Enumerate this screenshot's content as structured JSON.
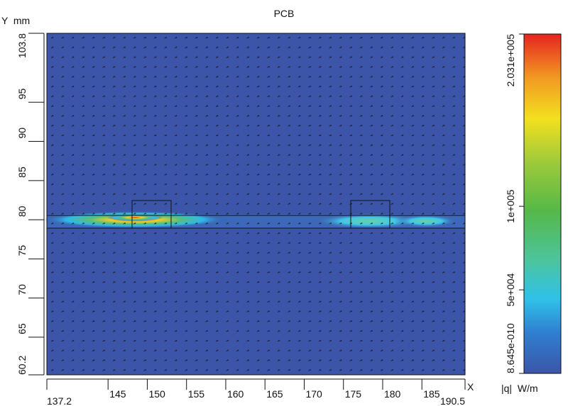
{
  "chart_data": {
    "type": "heatmap",
    "title": "PCB",
    "y_label": "Y  mm",
    "x_label": "X",
    "xlim": [
      137.2,
      190.5
    ],
    "xticks": [
      137.2,
      145,
      150,
      155,
      160,
      165,
      170,
      175,
      180,
      185,
      190.5
    ],
    "ylim": [
      60.2,
      103.8
    ],
    "yticks": [
      60.2,
      65,
      70,
      75,
      80,
      85,
      90,
      95,
      103.8
    ],
    "colorbar": {
      "label": "|q|  W/m",
      "clim": [
        8.645e-10,
        203100
      ],
      "ticks": [
        {
          "value": 8.645e-10,
          "label": "8.645e-010"
        },
        {
          "value": 50000,
          "label": "5e+004"
        },
        {
          "value": 100000,
          "label": "1e+005"
        },
        {
          "value": 203100,
          "label": "2.031e+005"
        }
      ]
    }
  }
}
